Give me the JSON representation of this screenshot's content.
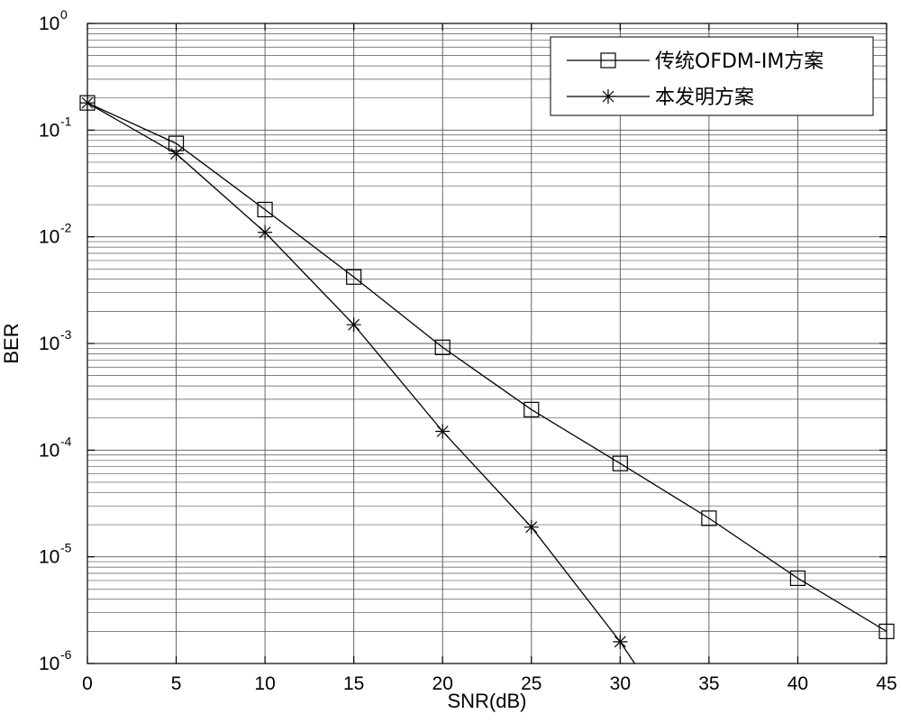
{
  "chart_data": {
    "type": "line",
    "title": "",
    "xlabel": "SNR(dB)",
    "ylabel": "BER",
    "xlim": [
      0,
      45
    ],
    "ylim": [
      1e-06,
      1
    ],
    "yscale": "log",
    "grid": true,
    "x_ticks": [
      "0",
      "5",
      "10",
      "15",
      "20",
      "25",
      "30",
      "35",
      "40",
      "45"
    ],
    "y_ticks": [
      {
        "base": "10",
        "exp": "0"
      },
      {
        "base": "10",
        "exp": "-1"
      },
      {
        "base": "10",
        "exp": "-2"
      },
      {
        "base": "10",
        "exp": "-3"
      },
      {
        "base": "10",
        "exp": "-4"
      },
      {
        "base": "10",
        "exp": "-5"
      },
      {
        "base": "10",
        "exp": "-6"
      }
    ],
    "legend_position": "top-right",
    "series": [
      {
        "name": "传统OFDM-IM方案",
        "marker": "square",
        "color": "#000000",
        "x": [
          0,
          5,
          10,
          15,
          20,
          25,
          30,
          35,
          40,
          45
        ],
        "y": [
          0.18,
          0.075,
          0.018,
          0.0042,
          0.00092,
          0.00024,
          7.5e-05,
          2.3e-05,
          6.3e-06,
          2e-06
        ]
      },
      {
        "name": "本发明方案",
        "marker": "star",
        "color": "#000000",
        "x": [
          0,
          5,
          10,
          15,
          20,
          25,
          30,
          31
        ],
        "y": [
          0.18,
          0.06,
          0.011,
          0.0015,
          0.00015,
          1.9e-05,
          1.6e-06,
          9e-07
        ]
      }
    ]
  }
}
